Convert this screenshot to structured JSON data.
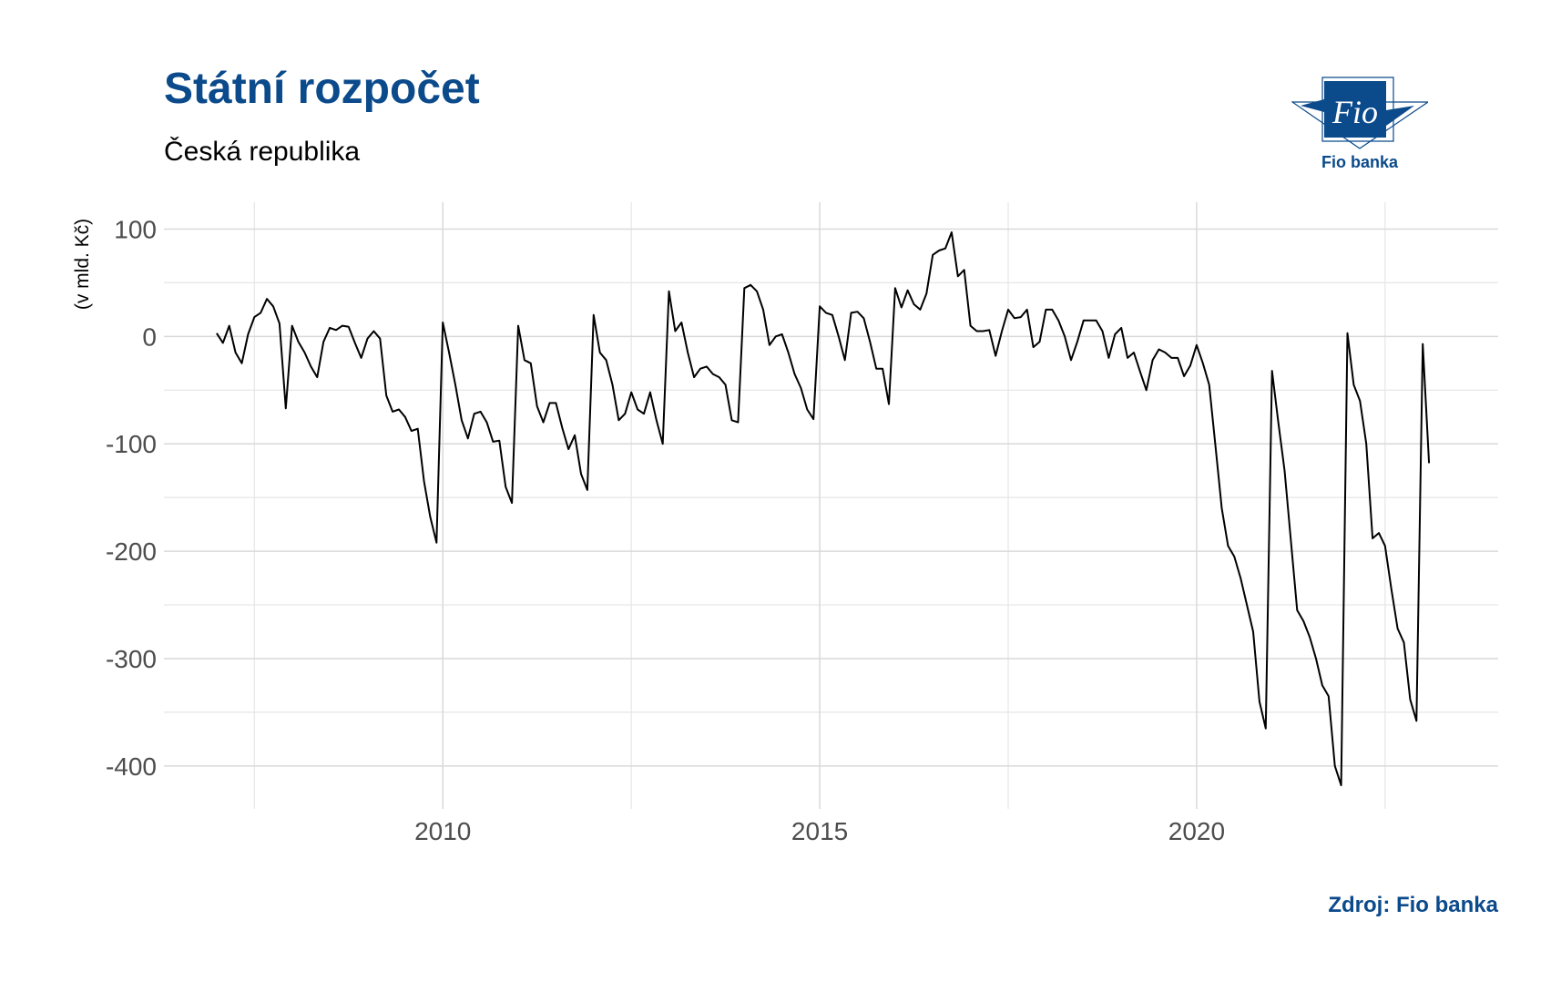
{
  "header": {
    "title": "Státní rozpočet",
    "subtitle": "Česká republika"
  },
  "logo": {
    "text": "Fio",
    "label": "Fio banka",
    "color": "#0b4a8b"
  },
  "footer": {
    "source": "Zdroj: Fio banka"
  },
  "chart_data": {
    "type": "line",
    "ylabel": "(v mld. Kč)",
    "xlim": [
      2006.3,
      2024.0
    ],
    "ylim": [
      -440,
      125
    ],
    "x_ticks": [
      2010,
      2015,
      2020
    ],
    "x_ticklabels": [
      "2010",
      "2015",
      "2020"
    ],
    "y_ticks": [
      100,
      0,
      -100,
      -200,
      -300,
      -400
    ],
    "y_ticklabels": [
      "100",
      "0",
      "-100",
      "-200",
      "-300",
      "-400"
    ],
    "grid": true,
    "line_color": "#000000",
    "series": [
      {
        "start_year": 2007,
        "start_month": 1,
        "frequency": "monthly",
        "values": [
          3,
          -6,
          10,
          -15,
          -25,
          2,
          18,
          22,
          35,
          28,
          12,
          -67,
          10,
          -5,
          -15,
          -28,
          -38,
          -5,
          8,
          6,
          10,
          9,
          -6,
          -20,
          -2,
          5,
          -2,
          -55,
          -70,
          -68,
          -75,
          -88,
          -86,
          -135,
          -168,
          -192,
          13,
          -15,
          -45,
          -78,
          -95,
          -72,
          -70,
          -80,
          -98,
          -97,
          -140,
          -155,
          10,
          -22,
          -25,
          -65,
          -80,
          -62,
          -62,
          -85,
          -105,
          -92,
          -128,
          -143,
          20,
          -15,
          -22,
          -45,
          -78,
          -72,
          -52,
          -68,
          -72,
          -52,
          -78,
          -100,
          42,
          5,
          13,
          -15,
          -38,
          -30,
          -28,
          -35,
          -38,
          -45,
          -78,
          -80,
          45,
          48,
          42,
          25,
          -8,
          0,
          2,
          -15,
          -35,
          -48,
          -68,
          -77,
          28,
          22,
          20,
          0,
          -22,
          22,
          23,
          17,
          -5,
          -30,
          -30,
          -63,
          45,
          27,
          43,
          30,
          25,
          40,
          76,
          80,
          82,
          97,
          56,
          62,
          10,
          5,
          5,
          6,
          -18,
          5,
          25,
          17,
          18,
          25,
          -10,
          -5,
          25,
          25,
          15,
          0,
          -22,
          -5,
          15,
          15,
          15,
          5,
          -20,
          2,
          8,
          -20,
          -15,
          -33,
          -50,
          -22,
          -12,
          -15,
          -20,
          -20,
          -37,
          -27,
          -8,
          -25,
          -45,
          -102,
          -160,
          -195,
          -205,
          -225,
          -250,
          -275,
          -340,
          -365,
          -32,
          -80,
          -125,
          -190,
          -255,
          -265,
          -280,
          -300,
          -325,
          -335,
          -400,
          -418,
          3,
          -45,
          -60,
          -100,
          -188,
          -183,
          -195,
          -235,
          -272,
          -285,
          -338,
          -358,
          -7,
          -118
        ]
      }
    ]
  }
}
